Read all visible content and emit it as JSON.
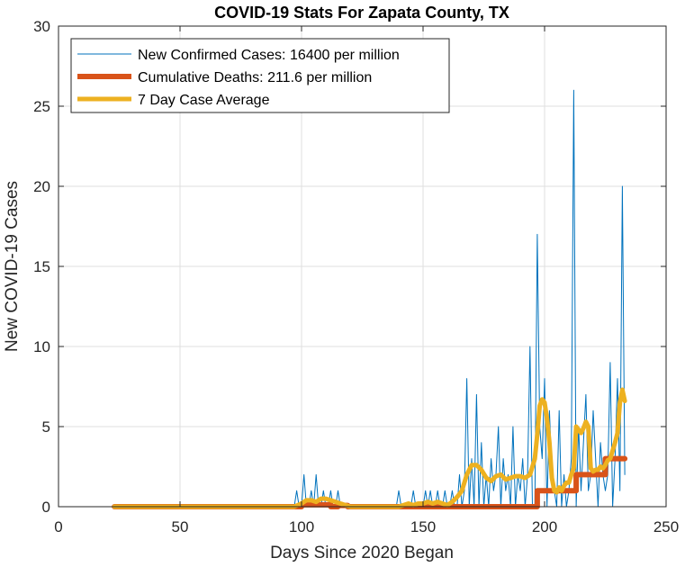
{
  "chart_data": {
    "type": "line",
    "title": "COVID-19 Stats For Zapata County, TX",
    "xlabel": "Days Since 2020 Began",
    "ylabel": "New COVID-19 Cases",
    "xlim": [
      0,
      250
    ],
    "ylim": [
      0,
      30
    ],
    "xticks": [
      0,
      50,
      100,
      150,
      200,
      250
    ],
    "yticks": [
      0,
      5,
      10,
      15,
      20,
      25,
      30
    ],
    "grid": true,
    "legend_position": "top-left",
    "series": [
      {
        "name": "New Confirmed Cases: 16400 per million",
        "color": "#0072BD",
        "x": [
          23,
          97,
          98,
          99,
          100,
          101,
          102,
          103,
          104,
          105,
          106,
          107,
          108,
          109,
          110,
          111,
          112,
          113,
          114,
          115,
          116,
          117,
          118,
          139,
          140,
          141,
          142,
          143,
          144,
          145,
          146,
          147,
          148,
          149,
          150,
          151,
          152,
          153,
          154,
          155,
          156,
          157,
          158,
          159,
          160,
          161,
          162,
          163,
          164,
          165,
          166,
          167,
          168,
          169,
          170,
          171,
          172,
          173,
          174,
          175,
          176,
          177,
          178,
          179,
          180,
          181,
          182,
          183,
          184,
          185,
          186,
          187,
          188,
          189,
          190,
          191,
          192,
          193,
          194,
          195,
          196,
          197,
          198,
          199,
          200,
          201,
          202,
          203,
          204,
          205,
          206,
          207,
          208,
          209,
          210,
          211,
          212,
          213,
          214,
          215,
          216,
          217,
          218,
          219,
          220,
          221,
          222,
          223,
          224,
          225,
          226,
          227,
          228,
          229,
          230,
          231,
          232,
          233
        ],
        "y": [
          0,
          0,
          1,
          0,
          0,
          2,
          0,
          0,
          1,
          0,
          2,
          0,
          0,
          1,
          0,
          0,
          1,
          0,
          0,
          1,
          0,
          0,
          0,
          0,
          1,
          0,
          0,
          0,
          0,
          0,
          1,
          0,
          0,
          0,
          0,
          1,
          0,
          1,
          0,
          0,
          1,
          0,
          0,
          1,
          0,
          0,
          1,
          0,
          0,
          2,
          0,
          1,
          8,
          0,
          3,
          0,
          7,
          0,
          4,
          0,
          2,
          0,
          3,
          1,
          2,
          5,
          0,
          3,
          1,
          2,
          0,
          5,
          0,
          2,
          1,
          3,
          0,
          2,
          10,
          0,
          0,
          17,
          5,
          3,
          8,
          0,
          6,
          2,
          1,
          0,
          6,
          0,
          2,
          0,
          1,
          3,
          26,
          0,
          5,
          1,
          4,
          7,
          1,
          2,
          6,
          3,
          0,
          4,
          2,
          1,
          2,
          9,
          0,
          3,
          8,
          1,
          20,
          2
        ],
        "line_width": 1
      },
      {
        "name": "Cumulative Deaths: 211.6 per million",
        "color": "#D95319",
        "x": [
          23,
          100,
          100,
          112,
          112,
          115,
          115,
          119,
          119,
          160,
          160,
          197,
          197,
          205,
          205,
          213,
          213,
          225,
          225,
          233
        ],
        "y": [
          0,
          0,
          0.12,
          0.12,
          0,
          0,
          0.08,
          0.08,
          0,
          0,
          0,
          0,
          1,
          1,
          1,
          1,
          2,
          2,
          3,
          3
        ],
        "line_width": 6
      },
      {
        "name": "7 Day Case Average",
        "color": "#EDB120",
        "x": [
          23,
          97,
          100,
          102,
          104,
          106,
          108,
          110,
          112,
          114,
          116,
          118,
          120,
          140,
          142,
          144,
          146,
          148,
          150,
          152,
          154,
          156,
          158,
          160,
          162,
          164,
          166,
          168,
          170,
          172,
          174,
          176,
          178,
          180,
          182,
          184,
          186,
          188,
          190,
          192,
          194,
          196,
          197,
          198,
          199,
          200,
          201,
          202,
          203,
          204,
          205,
          206,
          207,
          208,
          209,
          210,
          211,
          212,
          213,
          214,
          215,
          216,
          217,
          218,
          219,
          220,
          221,
          222,
          223,
          224,
          225,
          226,
          227,
          228,
          229,
          230,
          231,
          232,
          233
        ],
        "y": [
          0,
          0,
          0.2,
          0.4,
          0.4,
          0.3,
          0.5,
          0.5,
          0.4,
          0.3,
          0.2,
          0.1,
          0,
          0,
          0.1,
          0.2,
          0.1,
          0.2,
          0.2,
          0.3,
          0.2,
          0.3,
          0.2,
          0.1,
          0.3,
          0.6,
          1.0,
          2.0,
          2.6,
          2.6,
          2.3,
          1.8,
          1.6,
          1.9,
          2.0,
          1.7,
          1.8,
          1.9,
          1.9,
          1.8,
          2.0,
          3.0,
          4.5,
          6.3,
          6.7,
          6.5,
          5.5,
          4.0,
          1.8,
          1.0,
          0.9,
          1.2,
          1.0,
          1.3,
          1.5,
          1.5,
          2.0,
          2.4,
          5.0,
          4.8,
          4.6,
          4.9,
          5.3,
          5.0,
          2.4,
          2.2,
          2.3,
          2.3,
          2.5,
          2.4,
          2.6,
          2.9,
          3.0,
          3.5,
          4.0,
          4.6,
          6.5,
          7.3,
          6.6
        ],
        "line_width": 5
      }
    ]
  }
}
